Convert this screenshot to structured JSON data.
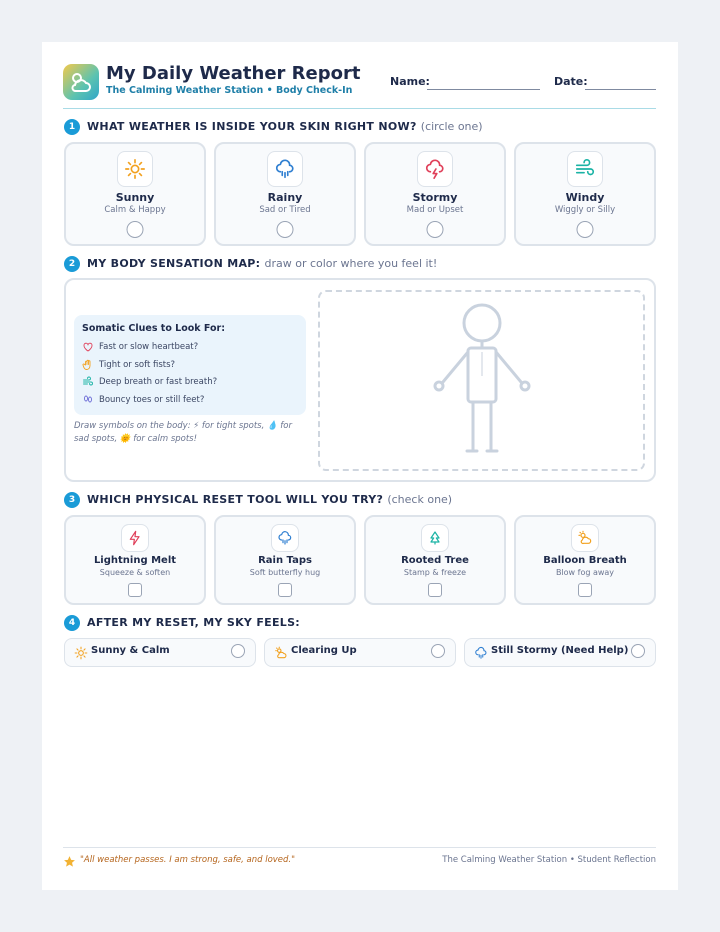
{
  "header": {
    "title": "My Daily Weather Report",
    "subtitle": "The Calming Weather Station • Body Check-In",
    "name_label": "Name:",
    "date_label": "Date:"
  },
  "section1": {
    "number": "1",
    "title": "WHAT WEATHER IS INSIDE YOUR SKIN RIGHT NOW?",
    "hint": "(circle one)",
    "options": [
      {
        "label": "Sunny",
        "desc": "Calm & Happy"
      },
      {
        "label": "Rainy",
        "desc": "Sad or Tired"
      },
      {
        "label": "Stormy",
        "desc": "Mad or Upset"
      },
      {
        "label": "Windy",
        "desc": "Wiggly or Silly"
      }
    ]
  },
  "section2": {
    "number": "2",
    "title": "MY BODY SENSATION MAP:",
    "hint": "draw or color where you feel it!",
    "clues_title": "Somatic Clues to Look For:",
    "clues": [
      "Fast or slow heartbeat?",
      "Tight or soft fists?",
      "Deep breath or fast breath?",
      "Bouncy toes or still feet?"
    ],
    "note": "Draw symbols on the body: ⚡ for tight spots, 💧 for sad spots, 🌞 for calm spots!"
  },
  "section3": {
    "number": "3",
    "title": "WHICH PHYSICAL RESET TOOL WILL YOU TRY?",
    "hint": "(check one)",
    "options": [
      {
        "label": "Lightning Melt",
        "desc": "Squeeze & soften"
      },
      {
        "label": "Rain Taps",
        "desc": "Soft butterfly hug"
      },
      {
        "label": "Rooted Tree",
        "desc": "Stamp & freeze"
      },
      {
        "label": "Balloon Breath",
        "desc": "Blow fog away"
      }
    ]
  },
  "section4": {
    "number": "4",
    "title": "AFTER MY RESET, MY SKY FEELS:",
    "options": [
      "Sunny & Calm",
      "Clearing Up",
      "Still Stormy (Need Help)"
    ]
  },
  "footer": {
    "quote": "\"All weather passes. I am strong, safe, and loved.\"",
    "credit": "The Calming Weather Station • Student Reflection"
  }
}
